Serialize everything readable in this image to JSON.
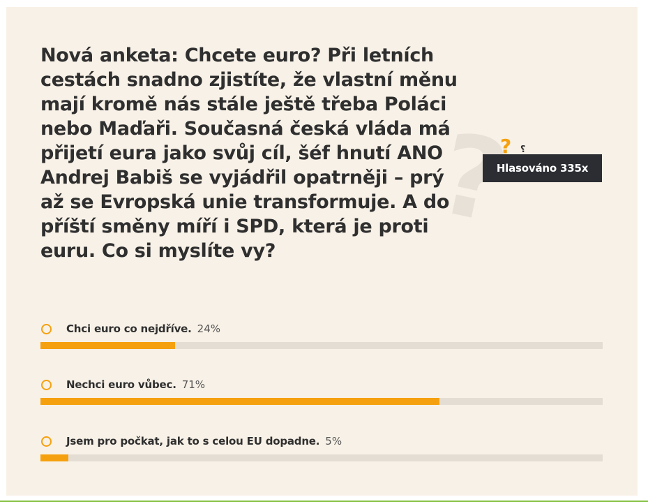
{
  "poll": {
    "question": "Nová anketa: Chcete euro? Při letních cestách snadno zjistíte, že vlastní měnu mají kromě nás stále ještě třeba Poláci nebo Maďaři. Současná česká vláda má přijetí eura jako svůj cíl, šéf hnutí ANO Andrej Babiš se vyjádřil opatrněji – prý až se Evropská unie transformuje. A do příští směny míří i SPD, která je proti euru. Co si myslíte vy?",
    "votes_label": "Hlasováno 335x",
    "icon": "question-mark-icon",
    "options": [
      {
        "label": "Chci euro co nejdříve.",
        "percent_label": "24%",
        "percent": 24
      },
      {
        "label": "Nechci euro vůbec.",
        "percent_label": "71%",
        "percent": 71
      },
      {
        "label": "Jsem pro počkat, jak to s celou EU dopadne.",
        "percent_label": "5%",
        "percent": 5
      }
    ]
  },
  "colors": {
    "accent": "#f5a10f",
    "card_background": "#f8f1e7",
    "bar_track": "#e4ddd4",
    "badge_background": "#2b2d33",
    "text": "#2f2f2f",
    "bottom_rule": "#8bc34a"
  }
}
